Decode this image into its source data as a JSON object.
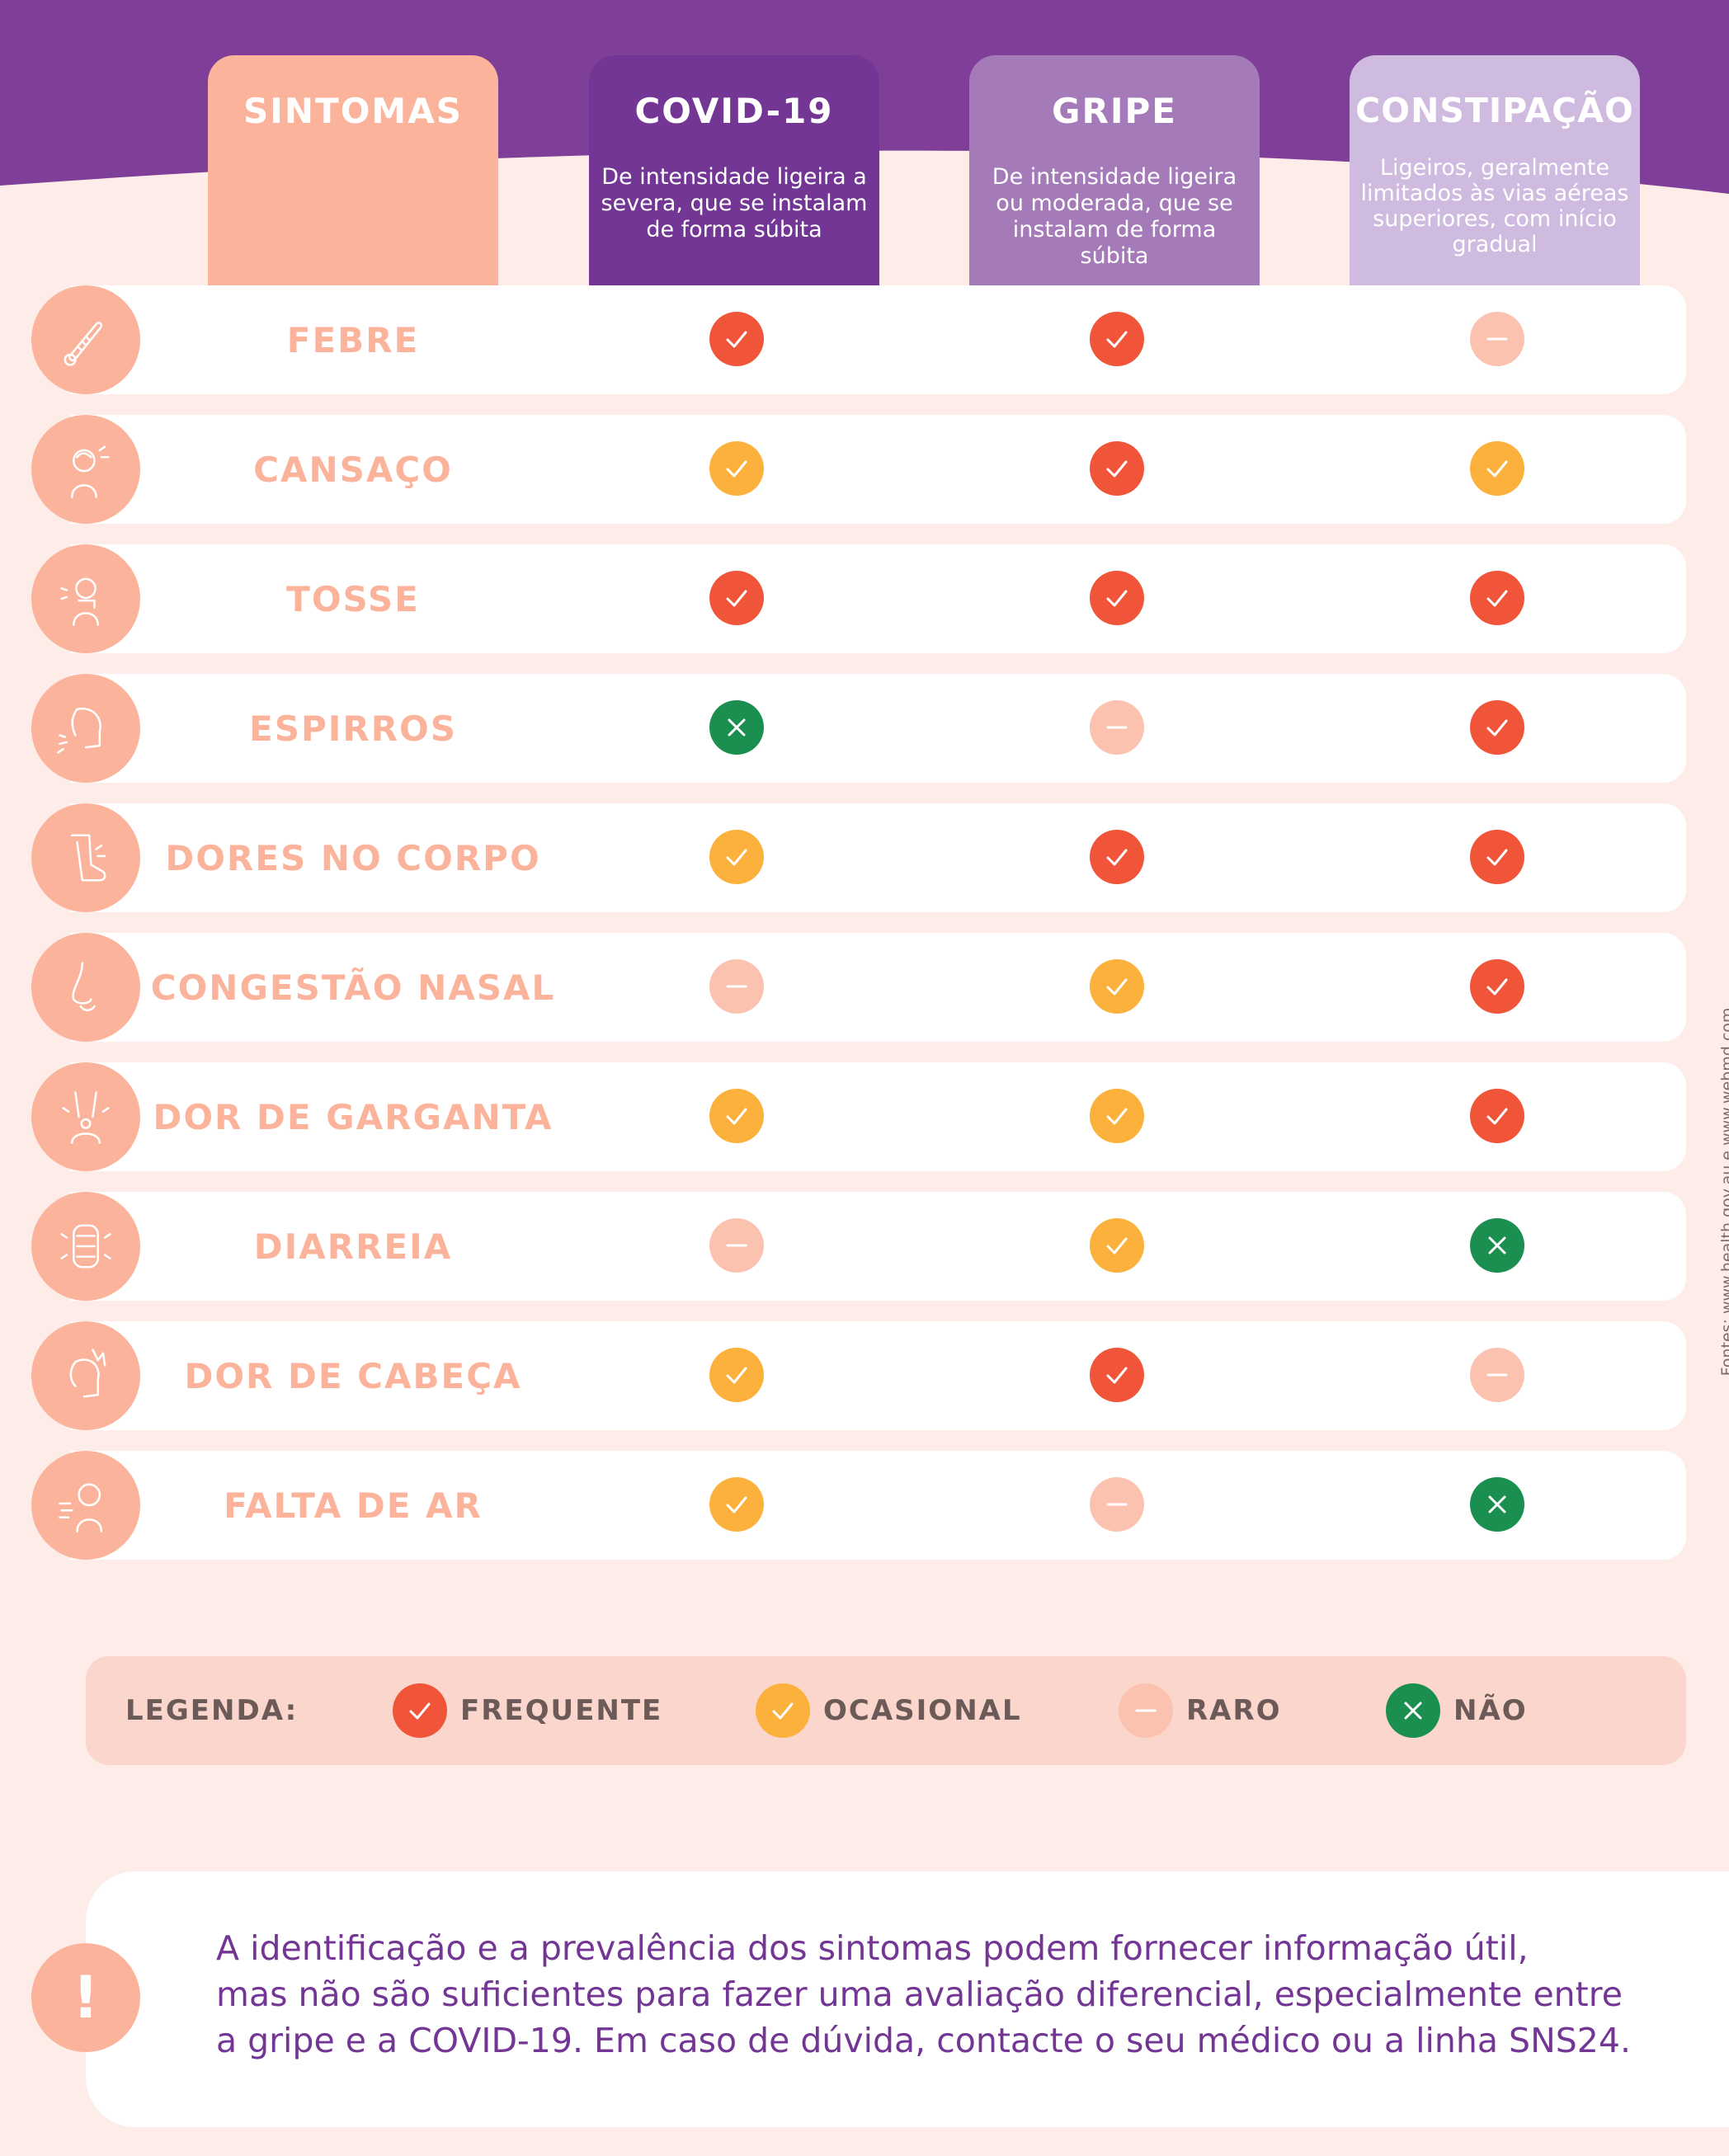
{
  "headers": {
    "sintomas": "SINTOMAS",
    "covid": {
      "title": "COVID-19",
      "description": "De intensidade ligeira a severa, que se instalam de forma súbita"
    },
    "gripe": {
      "title": "GRIPE",
      "description": "De intensidade ligeira ou moderada, que se instalam de forma súbita"
    },
    "constipacao": {
      "title": "CONSTIPAÇÃO",
      "description": "Ligeiros, geralmente limitados às vias aéreas superiores, com início gradual"
    }
  },
  "rows": [
    {
      "symptom": "FEBRE",
      "icon": "thermometer-icon",
      "covid": "frequente",
      "gripe": "frequente",
      "constipacao": "raro"
    },
    {
      "symptom": "CANSAÇO",
      "icon": "tired-person-icon",
      "covid": "ocasional",
      "gripe": "frequente",
      "constipacao": "ocasional"
    },
    {
      "symptom": "TOSSE",
      "icon": "cough-icon",
      "covid": "frequente",
      "gripe": "frequente",
      "constipacao": "frequente"
    },
    {
      "symptom": "ESPIRROS",
      "icon": "sneeze-icon",
      "covid": "nao",
      "gripe": "raro",
      "constipacao": "frequente"
    },
    {
      "symptom": "DORES NO CORPO",
      "icon": "leg-pain-icon",
      "covid": "ocasional",
      "gripe": "frequente",
      "constipacao": "frequente"
    },
    {
      "symptom": "CONGESTÃO NASAL",
      "icon": "nose-icon",
      "covid": "raro",
      "gripe": "ocasional",
      "constipacao": "frequente"
    },
    {
      "symptom": "DOR DE GARGANTA",
      "icon": "sore-throat-icon",
      "covid": "ocasional",
      "gripe": "ocasional",
      "constipacao": "frequente"
    },
    {
      "symptom": "DIARREIA",
      "icon": "intestine-icon",
      "covid": "raro",
      "gripe": "ocasional",
      "constipacao": "nao"
    },
    {
      "symptom": "DOR DE CABEÇA",
      "icon": "headache-icon",
      "covid": "ocasional",
      "gripe": "frequente",
      "constipacao": "raro"
    },
    {
      "symptom": "FALTA DE AR",
      "icon": "shortness-of-breath-icon",
      "covid": "ocasional",
      "gripe": "raro",
      "constipacao": "nao"
    }
  ],
  "legend": {
    "title": "LEGENDA:",
    "frequente": "FREQUENTE",
    "ocasional": "OCASIONAL",
    "raro": "RARO",
    "nao": "NÃO"
  },
  "colors": {
    "frequente": "#f0553a",
    "ocasional": "#fbb13c",
    "raro": "#fcc2b0",
    "nao": "#1a8f4f",
    "purple": "#733694"
  },
  "source": "Fontes: www.health.gov.au e www.webmd.com",
  "note": {
    "icon": "exclamation-icon",
    "mark": "!",
    "line1": "A identificação e a prevalência dos sintomas podem fornecer informação útil,",
    "line2": "mas não são suficientes para fazer uma avaliação diferencial, especialmente entre",
    "line3": "a gripe e a COVID-19. Em caso de dúvida, contacte o seu médico ou a linha SNS24."
  }
}
